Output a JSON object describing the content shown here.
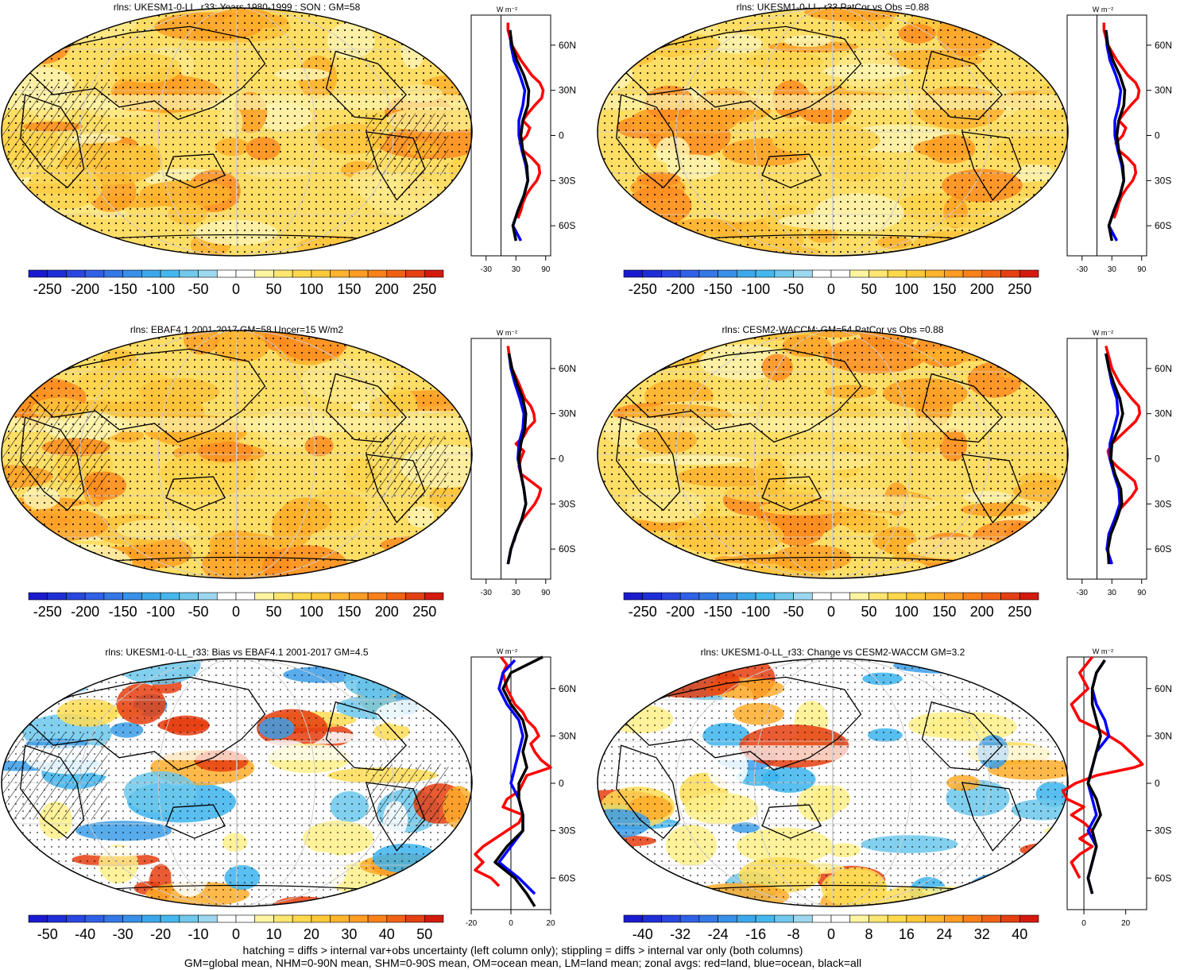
{
  "footer": {
    "line1": "hatching = diffs > internal var+obs uncertainty (left column only); stippling = diffs > internal var only (both columns)",
    "line2": "GM=global mean, NHM=0-90N mean, SHM=0-90S mean, OM=ocean mean, LM=land mean; zonal avgs: red=land, blue=ocean, black=all"
  },
  "chart_data": [
    {
      "type": "heatmap",
      "title": "rlns: UKESM1-0-LL_r33: Years 1980-1999 : SON : GM=58",
      "colorbar_ticks": [
        "-250",
        "-200",
        "-150",
        "-100",
        "-50",
        "0",
        "50",
        "100",
        "150",
        "200",
        "250"
      ],
      "colorbar_range": [
        -275,
        275
      ],
      "zonal_profile": {
        "unit": "W m⁻²",
        "x_ticks": [
          "-30",
          "30",
          "90"
        ],
        "xlim": [
          -60,
          100
        ],
        "y_ticks": [
          "60N",
          "30N",
          "0",
          "30S",
          "60S"
        ],
        "ylim": [
          -80,
          80
        ],
        "series": [
          {
            "color": "#ff0000",
            "lat": [
              75,
              70,
              60,
              50,
              40,
              35,
              30,
              25,
              20,
              15,
              10,
              5,
              0,
              -5,
              -10,
              -15,
              -20,
              -25,
              -30,
              -35,
              -40,
              -45,
              -50,
              -55
            ],
            "values": [
              14,
              14,
              22,
              40,
              62,
              78,
              85,
              82,
              68,
              55,
              44,
              58,
              52,
              38,
              44,
              62,
              76,
              78,
              72,
              60,
              50,
              44,
              40,
              34
            ]
          },
          {
            "color": "#0000ff",
            "lat": [
              70,
              60,
              50,
              40,
              30,
              20,
              10,
              0,
              -10,
              -20,
              -30,
              -40,
              -50,
              -60,
              -70
            ],
            "values": [
              18,
              20,
              26,
              38,
              48,
              44,
              36,
              36,
              42,
              50,
              54,
              46,
              34,
              24,
              40
            ]
          },
          {
            "color": "#000000",
            "lat": [
              70,
              60,
              50,
              40,
              30,
              20,
              10,
              0,
              -10,
              -20,
              -30,
              -40,
              -50,
              -60,
              -70
            ],
            "values": [
              18,
              22,
              32,
              46,
              56,
              54,
              44,
              40,
              44,
              52,
              54,
              46,
              34,
              24,
              30
            ]
          }
        ]
      }
    },
    {
      "type": "heatmap",
      "title": "rlns: UKESM1-0-LL_r33 PatCor vs Obs =0.88",
      "colorbar_ticks": [
        "-250",
        "-200",
        "-150",
        "-100",
        "-50",
        "0",
        "50",
        "100",
        "150",
        "200",
        "250"
      ],
      "colorbar_range": [
        -275,
        275
      ],
      "zonal_profile": {
        "unit": "W m⁻²",
        "x_ticks": [
          "-30",
          "30",
          "90"
        ],
        "xlim": [
          -60,
          100
        ],
        "y_ticks": [
          "60N",
          "30N",
          "0",
          "30S",
          "60S"
        ],
        "ylim": [
          -80,
          80
        ],
        "series": [
          {
            "color": "#ff0000",
            "lat": [
              75,
              70,
              60,
              50,
              40,
              35,
              30,
              25,
              20,
              15,
              10,
              5,
              0,
              -5,
              -10,
              -15,
              -20,
              -25,
              -30,
              -35,
              -40,
              -45,
              -50,
              -55
            ],
            "values": [
              14,
              14,
              22,
              40,
              62,
              78,
              85,
              82,
              68,
              55,
              44,
              58,
              52,
              38,
              44,
              62,
              76,
              78,
              72,
              60,
              50,
              44,
              40,
              34
            ]
          },
          {
            "color": "#0000ff",
            "lat": [
              70,
              60,
              50,
              40,
              30,
              20,
              10,
              0,
              -10,
              -20,
              -30,
              -40,
              -50,
              -60,
              -70
            ],
            "values": [
              18,
              20,
              26,
              38,
              48,
              44,
              36,
              36,
              42,
              50,
              54,
              46,
              34,
              24,
              40
            ]
          },
          {
            "color": "#000000",
            "lat": [
              70,
              60,
              50,
              40,
              30,
              20,
              10,
              0,
              -10,
              -20,
              -30,
              -40,
              -50,
              -60,
              -70
            ],
            "values": [
              18,
              22,
              32,
              46,
              56,
              54,
              44,
              40,
              44,
              52,
              54,
              46,
              34,
              24,
              30
            ]
          }
        ]
      }
    },
    {
      "type": "heatmap",
      "title": "rlns: EBAF4.1 2001-2017 GM=58 Uncer=15 W/m2",
      "colorbar_ticks": [
        "-250",
        "-200",
        "-150",
        "-100",
        "-50",
        "0",
        "50",
        "100",
        "150",
        "200",
        "250"
      ],
      "colorbar_range": [
        -275,
        275
      ],
      "zonal_profile": {
        "unit": "W m⁻²",
        "x_ticks": [
          "-30",
          "30",
          "90"
        ],
        "xlim": [
          -60,
          100
        ],
        "y_ticks": [
          "60N",
          "30N",
          "0",
          "30S",
          "60S"
        ],
        "ylim": [
          -80,
          80
        ],
        "series": [
          {
            "color": "#ff0000",
            "lat": [
              75,
              70,
              60,
              50,
              40,
              35,
              30,
              25,
              20,
              15,
              10,
              5,
              0,
              -5,
              -10,
              -15,
              -20,
              -25,
              -30,
              -35,
              -40,
              -45,
              -50,
              -55
            ],
            "values": [
              14,
              16,
              22,
              36,
              48,
              60,
              66,
              68,
              54,
              46,
              30,
              46,
              40,
              36,
              40,
              60,
              80,
              76,
              68,
              56,
              44,
              36,
              30,
              26
            ]
          },
          {
            "color": "#0000ff",
            "lat": [
              70,
              60,
              50,
              40,
              30,
              20,
              10,
              0,
              -10,
              -20,
              -30,
              -40,
              -50,
              -60,
              -70
            ],
            "values": [
              16,
              20,
              28,
              38,
              46,
              44,
              36,
              34,
              40,
              46,
              50,
              42,
              30,
              20,
              14
            ]
          },
          {
            "color": "#000000",
            "lat": [
              70,
              60,
              50,
              40,
              30,
              20,
              10,
              0,
              -10,
              -20,
              -30,
              -40,
              -50,
              -60,
              -70
            ],
            "values": [
              16,
              22,
              32,
              44,
              50,
              48,
              40,
              36,
              40,
              46,
              50,
              42,
              30,
              20,
              14
            ]
          }
        ]
      }
    },
    {
      "type": "heatmap",
      "title": "rlns: CESM2-WACCM: GM=54 PatCor vs Obs =0.88",
      "colorbar_ticks": [
        "-250",
        "-200",
        "-150",
        "-100",
        "-50",
        "0",
        "50",
        "100",
        "150",
        "200",
        "250"
      ],
      "colorbar_range": [
        -275,
        275
      ],
      "zonal_profile": {
        "unit": "W m⁻²",
        "x_ticks": [
          "-30",
          "30",
          "90"
        ],
        "xlim": [
          -60,
          100
        ],
        "y_ticks": [
          "60N",
          "30N",
          "0",
          "30S",
          "60S"
        ],
        "ylim": [
          -80,
          80
        ],
        "series": [
          {
            "color": "#ff0000",
            "lat": [
              75,
              70,
              60,
              50,
              40,
              35,
              30,
              25,
              20,
              15,
              10,
              5,
              0,
              -5,
              -10,
              -15,
              -20,
              -25,
              -30,
              -35,
              -40,
              -45,
              -50,
              -55
            ],
            "values": [
              18,
              22,
              30,
              46,
              70,
              84,
              86,
              78,
              62,
              46,
              30,
              22,
              26,
              40,
              58,
              76,
              80,
              70,
              56,
              42,
              36,
              30,
              24,
              22
            ]
          },
          {
            "color": "#0000ff",
            "lat": [
              70,
              60,
              50,
              40,
              30,
              20,
              10,
              0,
              -10,
              -20,
              -30,
              -40,
              -50,
              -60,
              -70
            ],
            "values": [
              18,
              24,
              30,
              40,
              42,
              34,
              26,
              26,
              34,
              44,
              46,
              36,
              24,
              20,
              30
            ]
          },
          {
            "color": "#000000",
            "lat": [
              70,
              60,
              50,
              40,
              30,
              20,
              10,
              0,
              -10,
              -20,
              -30,
              -40,
              -50,
              -60,
              -70
            ],
            "values": [
              18,
              24,
              34,
              46,
              52,
              44,
              30,
              28,
              36,
              48,
              50,
              40,
              28,
              22,
              24
            ]
          }
        ]
      }
    },
    {
      "type": "heatmap",
      "title": "rlns: UKESM1-0-LL_r33: Bias vs EBAF4.1 2001-2017  GM=4.5",
      "colorbar_ticks": [
        "-50",
        "-40",
        "-30",
        "-20",
        "-10",
        "0",
        "10",
        "20",
        "30",
        "40",
        "50"
      ],
      "colorbar_range": [
        -55,
        55
      ],
      "zonal_profile": {
        "unit": "W m⁻²",
        "x_ticks": [
          "-20",
          "0",
          "20"
        ],
        "xlim": [
          -20,
          20
        ],
        "y_ticks": [
          "60N",
          "30N",
          "0",
          "30S",
          "60S"
        ],
        "ylim": [
          -80,
          80
        ],
        "series": [
          {
            "color": "#ff0000",
            "lat": [
              80,
              75,
              70,
              60,
              50,
              45,
              40,
              35,
              30,
              25,
              20,
              15,
              10,
              5,
              0,
              -5,
              -10,
              -15,
              -20,
              -25,
              -30,
              -35,
              -40,
              -45,
              -50,
              -55,
              -60,
              -65
            ],
            "values": [
              -5,
              -2,
              -4,
              -2,
              2,
              6,
              8,
              12,
              14,
              10,
              12,
              15,
              20,
              8,
              6,
              4,
              -2,
              -4,
              6,
              4,
              -2,
              -8,
              -14,
              -18,
              -14,
              -18,
              -10,
              -6
            ]
          },
          {
            "color": "#0000ff",
            "lat": [
              78,
              70,
              60,
              50,
              40,
              30,
              20,
              10,
              0,
              -10,
              -20,
              -30,
              -40,
              -50,
              -60,
              -70
            ],
            "values": [
              2,
              -4,
              -6,
              -2,
              4,
              6,
              4,
              2,
              0,
              4,
              6,
              6,
              0,
              -6,
              4,
              12
            ]
          },
          {
            "color": "#000000",
            "lat": [
              80,
              75,
              70,
              60,
              50,
              40,
              30,
              20,
              10,
              0,
              -10,
              -20,
              -30,
              -40,
              -50,
              -60,
              -70,
              -78
            ],
            "values": [
              16,
              8,
              0,
              -4,
              0,
              6,
              8,
              6,
              8,
              4,
              4,
              6,
              6,
              -2,
              -8,
              2,
              8,
              12
            ]
          }
        ]
      }
    },
    {
      "type": "heatmap",
      "title": "rlns: UKESM1-0-LL_r33: Change vs CESM2-WACCM GM=3.2",
      "colorbar_ticks": [
        "-40",
        "-32",
        "-24",
        "-16",
        "-8",
        "0",
        "8",
        "16",
        "24",
        "32",
        "40"
      ],
      "colorbar_range": [
        -44,
        44
      ],
      "zonal_profile": {
        "unit": "W m⁻²",
        "x_ticks": [
          "0",
          "20"
        ],
        "xlim": [
          -8,
          30
        ],
        "y_ticks": [
          "60N",
          "30N",
          "0",
          "30S",
          "60S"
        ],
        "ylim": [
          -80,
          80
        ],
        "series": [
          {
            "color": "#ff0000",
            "lat": [
              80,
              70,
              60,
              50,
              40,
              35,
              30,
              25,
              20,
              15,
              12,
              10,
              5,
              0,
              -5,
              -10,
              -15,
              -20,
              -25,
              -30,
              -35,
              -40,
              -45,
              -50,
              -55,
              -60
            ],
            "values": [
              4,
              -2,
              2,
              -6,
              -2,
              6,
              12,
              18,
              22,
              26,
              28,
              24,
              6,
              -4,
              -10,
              -8,
              0,
              -6,
              0,
              4,
              -2,
              4,
              -2,
              -6,
              -4,
              -2
            ]
          },
          {
            "color": "#0000ff",
            "lat": [
              78,
              70,
              60,
              50,
              40,
              30,
              20,
              10,
              0,
              -10,
              -20,
              -30,
              -40,
              -50,
              -60,
              -70
            ],
            "values": [
              10,
              6,
              4,
              6,
              10,
              12,
              6,
              4,
              2,
              4,
              6,
              2,
              6,
              4,
              2,
              4
            ]
          },
          {
            "color": "#000000",
            "lat": [
              78,
              70,
              60,
              50,
              40,
              30,
              20,
              10,
              0,
              -10,
              -20,
              -30,
              -40,
              -50,
              -60,
              -70
            ],
            "values": [
              10,
              6,
              4,
              4,
              6,
              8,
              6,
              4,
              2,
              6,
              8,
              4,
              6,
              4,
              2,
              4
            ]
          }
        ]
      }
    }
  ]
}
